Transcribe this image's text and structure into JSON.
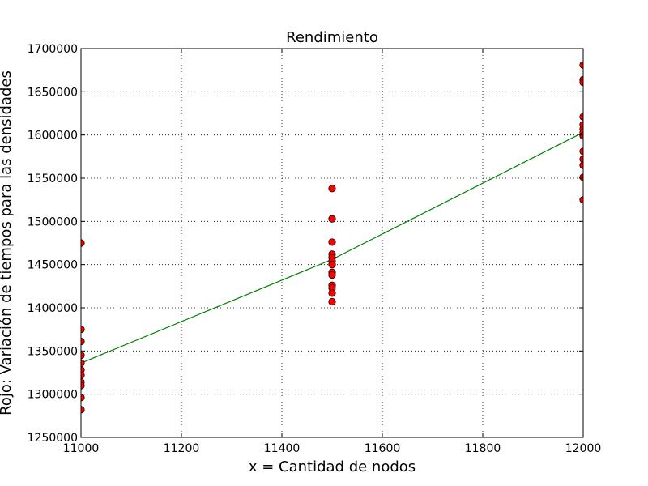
{
  "chart_data": {
    "type": "scatter",
    "title": "Rendimiento",
    "xlabel": "x = Cantidad de nodos",
    "ylabel": "Rojo: Variación de tiempos para las densidades",
    "xlim": [
      11000,
      12000
    ],
    "ylim": [
      1250000,
      1700000
    ],
    "xticks": [
      11000,
      11200,
      11400,
      11600,
      11800,
      12000
    ],
    "yticks": [
      1250000,
      1300000,
      1350000,
      1400000,
      1450000,
      1500000,
      1550000,
      1600000,
      1650000,
      1700000
    ],
    "grid": true,
    "series": [
      {
        "type": "scatter",
        "color": "#ff0000",
        "points": [
          {
            "x": 11000,
            "y": 1475000
          },
          {
            "x": 11000,
            "y": 1375000
          },
          {
            "x": 11000,
            "y": 1361000
          },
          {
            "x": 11000,
            "y": 1345000
          },
          {
            "x": 11000,
            "y": 1336000
          },
          {
            "x": 11000,
            "y": 1328000
          },
          {
            "x": 11000,
            "y": 1322000
          },
          {
            "x": 11000,
            "y": 1314000
          },
          {
            "x": 11000,
            "y": 1310000
          },
          {
            "x": 11000,
            "y": 1296000
          },
          {
            "x": 11000,
            "y": 1282000
          },
          {
            "x": 11500,
            "y": 1538000
          },
          {
            "x": 11500,
            "y": 1503000
          },
          {
            "x": 11500,
            "y": 1476000
          },
          {
            "x": 11500,
            "y": 1462000
          },
          {
            "x": 11500,
            "y": 1458000
          },
          {
            "x": 11500,
            "y": 1454000
          },
          {
            "x": 11500,
            "y": 1450000
          },
          {
            "x": 11500,
            "y": 1441000
          },
          {
            "x": 11500,
            "y": 1438000
          },
          {
            "x": 11500,
            "y": 1426000
          },
          {
            "x": 11500,
            "y": 1423000
          },
          {
            "x": 11500,
            "y": 1417000
          },
          {
            "x": 11500,
            "y": 1407000
          },
          {
            "x": 12000,
            "y": 1681000
          },
          {
            "x": 12000,
            "y": 1664000
          },
          {
            "x": 12000,
            "y": 1661000
          },
          {
            "x": 12000,
            "y": 1621000
          },
          {
            "x": 12000,
            "y": 1612000
          },
          {
            "x": 12000,
            "y": 1607000
          },
          {
            "x": 12000,
            "y": 1603000
          },
          {
            "x": 12000,
            "y": 1599000
          },
          {
            "x": 12000,
            "y": 1581000
          },
          {
            "x": 12000,
            "y": 1572000
          },
          {
            "x": 12000,
            "y": 1565000
          },
          {
            "x": 12000,
            "y": 1551000
          },
          {
            "x": 12000,
            "y": 1525000
          }
        ]
      },
      {
        "type": "line",
        "color": "#008000",
        "x": [
          11000,
          11500,
          12000
        ],
        "y": [
          1336000,
          1456000,
          1603000
        ]
      }
    ]
  }
}
